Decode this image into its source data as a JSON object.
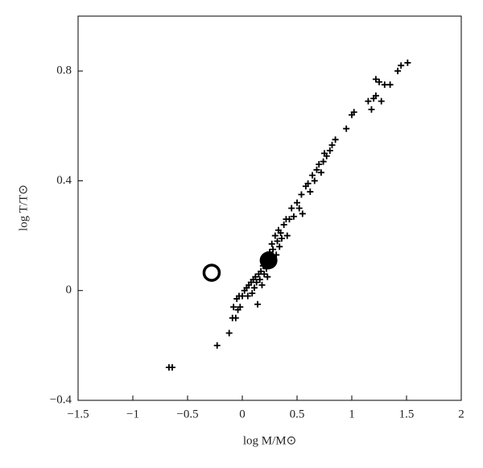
{
  "chart_data": {
    "type": "scatter",
    "xlabel": "log M/M⊙",
    "ylabel": "log T/T⊙",
    "xlim": [
      -1.5,
      2
    ],
    "ylim": [
      -0.4,
      1.0
    ],
    "xticks": [
      {
        "value": -1.5,
        "label": "−1.5"
      },
      {
        "value": -1,
        "label": "−1"
      },
      {
        "value": -0.5,
        "label": "−0.5"
      },
      0,
      0.5,
      1,
      1.5,
      2
    ],
    "yticks": [
      {
        "value": -0.4,
        "label": "−0.4"
      },
      0,
      0.4,
      0.8
    ],
    "series": [
      {
        "marker": "plus",
        "color": "#000000",
        "x": [
          -0.67,
          -0.64,
          -0.23,
          -0.12,
          -0.09,
          -0.06,
          -0.08,
          -0.04,
          -0.05,
          -0.03,
          -0.02,
          0.0,
          0.02,
          0.04,
          0.05,
          0.06,
          0.08,
          0.09,
          0.1,
          0.11,
          0.12,
          0.13,
          0.14,
          0.15,
          0.16,
          0.17,
          0.18,
          0.19,
          0.2,
          0.21,
          0.22,
          0.23,
          0.24,
          0.25,
          0.26,
          0.27,
          0.28,
          0.3,
          0.31,
          0.32,
          0.33,
          0.34,
          0.35,
          0.36,
          0.38,
          0.4,
          0.41,
          0.43,
          0.45,
          0.47,
          0.5,
          0.52,
          0.54,
          0.55,
          0.58,
          0.6,
          0.62,
          0.64,
          0.66,
          0.68,
          0.7,
          0.72,
          0.74,
          0.75,
          0.77,
          0.8,
          0.82,
          0.85,
          0.95,
          1.0,
          1.02,
          1.15,
          1.2,
          1.22,
          1.18,
          1.27,
          1.3,
          1.35,
          1.22,
          1.25,
          1.42,
          1.45,
          1.51
        ],
        "y": [
          -0.28,
          -0.28,
          -0.2,
          -0.155,
          -0.1,
          -0.1,
          -0.06,
          -0.07,
          -0.03,
          -0.02,
          -0.06,
          -0.02,
          0.0,
          0.01,
          -0.02,
          0.02,
          0.03,
          -0.01,
          0.04,
          0.01,
          0.05,
          0.03,
          -0.05,
          0.06,
          0.04,
          0.07,
          0.02,
          0.09,
          0.06,
          0.1,
          0.08,
          0.05,
          0.12,
          0.14,
          0.1,
          0.17,
          0.15,
          0.2,
          0.13,
          0.18,
          0.22,
          0.16,
          0.21,
          0.19,
          0.24,
          0.26,
          0.2,
          0.26,
          0.3,
          0.27,
          0.32,
          0.3,
          0.35,
          0.28,
          0.38,
          0.39,
          0.36,
          0.42,
          0.4,
          0.44,
          0.46,
          0.43,
          0.47,
          0.5,
          0.49,
          0.51,
          0.53,
          0.55,
          0.59,
          0.64,
          0.65,
          0.69,
          0.7,
          0.71,
          0.66,
          0.69,
          0.75,
          0.75,
          0.77,
          0.76,
          0.8,
          0.82,
          0.83
        ]
      },
      {
        "marker": "filled-circle",
        "color": "#000000",
        "x": [
          0.24
        ],
        "y": [
          0.11
        ]
      },
      {
        "marker": "open-circle",
        "color": "#000000",
        "x": [
          -0.28
        ],
        "y": [
          0.065
        ]
      }
    ]
  }
}
